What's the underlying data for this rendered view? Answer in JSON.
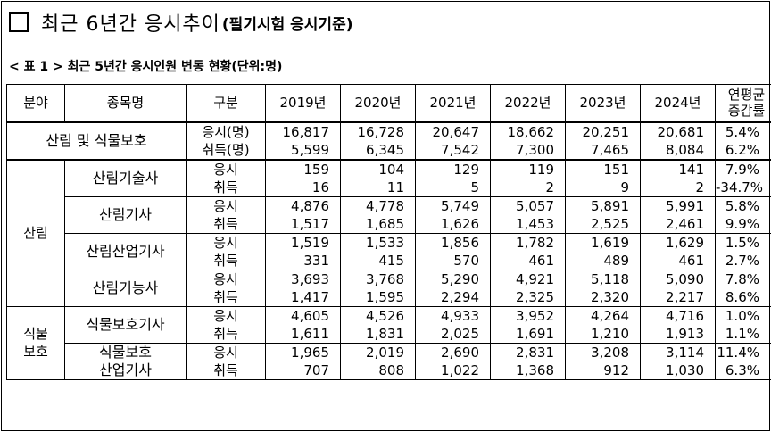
{
  "title": {
    "main": "최근 6년간 응시추이",
    "sub": "(필기시험 응시기준)"
  },
  "caption": "< 표 1 > 최근 5년간 응시인원 변동 현황(단위:명)",
  "table": {
    "headers": {
      "field": "분야",
      "item": "종목명",
      "type": "구분",
      "years": [
        "2019년",
        "2020년",
        "2021년",
        "2022년",
        "2023년",
        "2024년"
      ],
      "growth_l1": "연평균",
      "growth_l2": "증감률"
    },
    "total": {
      "name": "산림 및 식물보호",
      "label1": "응시(명)",
      "label2": "취득(명)",
      "apply": [
        "16,817",
        "16,728",
        "20,647",
        "18,662",
        "20,251",
        "20,681"
      ],
      "acquire": [
        "5,599",
        "6,345",
        "7,542",
        "7,300",
        "7,465",
        "8,084"
      ],
      "apply_growth": "5.4%",
      "acquire_growth": "6.2%"
    },
    "groups": [
      {
        "field": "산림",
        "items": [
          {
            "name_l1": "산림기술사",
            "name_l2": "",
            "label1": "응시",
            "label2": "취득",
            "apply": [
              "159",
              "104",
              "129",
              "119",
              "151",
              "141"
            ],
            "acquire": [
              "16",
              "11",
              "5",
              "2",
              "9",
              "2"
            ],
            "apply_growth": "7.9%",
            "acquire_growth": "-34.7%"
          },
          {
            "name_l1": "산림기사",
            "name_l2": "",
            "label1": "응시",
            "label2": "취득",
            "apply": [
              "4,876",
              "4,778",
              "5,749",
              "5,057",
              "5,891",
              "5,991"
            ],
            "acquire": [
              "1,517",
              "1,685",
              "1,626",
              "1,453",
              "2,525",
              "2,461"
            ],
            "apply_growth": "5.8%",
            "acquire_growth": "9.9%"
          },
          {
            "name_l1": "산림산업기사",
            "name_l2": "",
            "label1": "응시",
            "label2": "취득",
            "apply": [
              "1,519",
              "1,533",
              "1,856",
              "1,782",
              "1,619",
              "1,629"
            ],
            "acquire": [
              "331",
              "415",
              "570",
              "461",
              "489",
              "461"
            ],
            "apply_growth": "1.5%",
            "acquire_growth": "2.7%"
          },
          {
            "name_l1": "산림기능사",
            "name_l2": "",
            "label1": "응시",
            "label2": "취득",
            "apply": [
              "3,693",
              "3,768",
              "5,290",
              "4,921",
              "5,118",
              "5,090"
            ],
            "acquire": [
              "1,417",
              "1,595",
              "2,294",
              "2,325",
              "2,320",
              "2,217"
            ],
            "apply_growth": "7.8%",
            "acquire_growth": "8.6%"
          }
        ]
      },
      {
        "field_l1": "식물",
        "field_l2": "보호",
        "items": [
          {
            "name_l1": "식물보호기사",
            "name_l2": "",
            "label1": "응시",
            "label2": "취득",
            "apply": [
              "4,605",
              "4,526",
              "4,933",
              "3,952",
              "4,264",
              "4,716"
            ],
            "acquire": [
              "1,611",
              "1,831",
              "2,025",
              "1,691",
              "1,210",
              "1,913"
            ],
            "apply_growth": "1.0%",
            "acquire_growth": "1.1%"
          },
          {
            "name_l1": "식물보호",
            "name_l2": "산업기사",
            "label1": "응시",
            "label2": "취득",
            "apply": [
              "1,965",
              "2,019",
              "2,690",
              "2,831",
              "3,208",
              "3,114"
            ],
            "acquire": [
              "707",
              "808",
              "1,022",
              "1,368",
              "912",
              "1,030"
            ],
            "apply_growth": "11.4%",
            "acquire_growth": "6.3%"
          }
        ]
      }
    ]
  }
}
